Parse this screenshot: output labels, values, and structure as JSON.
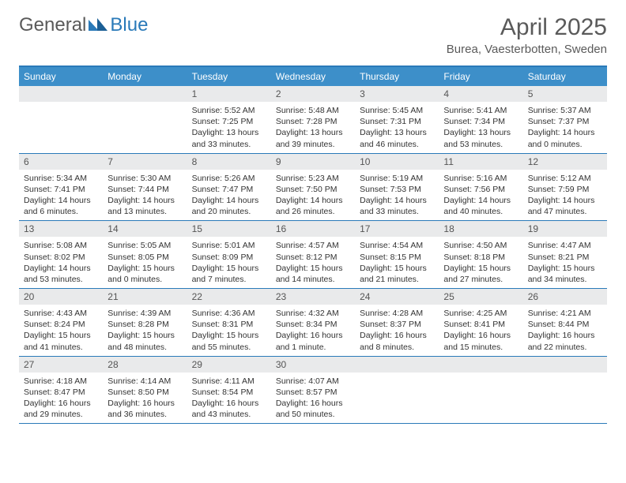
{
  "logo": {
    "text_general": "General",
    "text_blue": "Blue"
  },
  "title": "April 2025",
  "location": "Burea, Vaesterbotten, Sweden",
  "colors": {
    "header_bg": "#3d8fc9",
    "header_text": "#ffffff",
    "border": "#2a7ab9",
    "daynum_bg": "#e9eaeb",
    "text": "#333333",
    "logo_gray": "#5a5a5a",
    "logo_blue": "#2a7ab9"
  },
  "day_names": [
    "Sunday",
    "Monday",
    "Tuesday",
    "Wednesday",
    "Thursday",
    "Friday",
    "Saturday"
  ],
  "weeks": [
    [
      null,
      null,
      {
        "n": "1",
        "sr": "5:52 AM",
        "ss": "7:25 PM",
        "dl": "13 hours and 33 minutes."
      },
      {
        "n": "2",
        "sr": "5:48 AM",
        "ss": "7:28 PM",
        "dl": "13 hours and 39 minutes."
      },
      {
        "n": "3",
        "sr": "5:45 AM",
        "ss": "7:31 PM",
        "dl": "13 hours and 46 minutes."
      },
      {
        "n": "4",
        "sr": "5:41 AM",
        "ss": "7:34 PM",
        "dl": "13 hours and 53 minutes."
      },
      {
        "n": "5",
        "sr": "5:37 AM",
        "ss": "7:37 PM",
        "dl": "14 hours and 0 minutes."
      }
    ],
    [
      {
        "n": "6",
        "sr": "5:34 AM",
        "ss": "7:41 PM",
        "dl": "14 hours and 6 minutes."
      },
      {
        "n": "7",
        "sr": "5:30 AM",
        "ss": "7:44 PM",
        "dl": "14 hours and 13 minutes."
      },
      {
        "n": "8",
        "sr": "5:26 AM",
        "ss": "7:47 PM",
        "dl": "14 hours and 20 minutes."
      },
      {
        "n": "9",
        "sr": "5:23 AM",
        "ss": "7:50 PM",
        "dl": "14 hours and 26 minutes."
      },
      {
        "n": "10",
        "sr": "5:19 AM",
        "ss": "7:53 PM",
        "dl": "14 hours and 33 minutes."
      },
      {
        "n": "11",
        "sr": "5:16 AM",
        "ss": "7:56 PM",
        "dl": "14 hours and 40 minutes."
      },
      {
        "n": "12",
        "sr": "5:12 AM",
        "ss": "7:59 PM",
        "dl": "14 hours and 47 minutes."
      }
    ],
    [
      {
        "n": "13",
        "sr": "5:08 AM",
        "ss": "8:02 PM",
        "dl": "14 hours and 53 minutes."
      },
      {
        "n": "14",
        "sr": "5:05 AM",
        "ss": "8:05 PM",
        "dl": "15 hours and 0 minutes."
      },
      {
        "n": "15",
        "sr": "5:01 AM",
        "ss": "8:09 PM",
        "dl": "15 hours and 7 minutes."
      },
      {
        "n": "16",
        "sr": "4:57 AM",
        "ss": "8:12 PM",
        "dl": "15 hours and 14 minutes."
      },
      {
        "n": "17",
        "sr": "4:54 AM",
        "ss": "8:15 PM",
        "dl": "15 hours and 21 minutes."
      },
      {
        "n": "18",
        "sr": "4:50 AM",
        "ss": "8:18 PM",
        "dl": "15 hours and 27 minutes."
      },
      {
        "n": "19",
        "sr": "4:47 AM",
        "ss": "8:21 PM",
        "dl": "15 hours and 34 minutes."
      }
    ],
    [
      {
        "n": "20",
        "sr": "4:43 AM",
        "ss": "8:24 PM",
        "dl": "15 hours and 41 minutes."
      },
      {
        "n": "21",
        "sr": "4:39 AM",
        "ss": "8:28 PM",
        "dl": "15 hours and 48 minutes."
      },
      {
        "n": "22",
        "sr": "4:36 AM",
        "ss": "8:31 PM",
        "dl": "15 hours and 55 minutes."
      },
      {
        "n": "23",
        "sr": "4:32 AM",
        "ss": "8:34 PM",
        "dl": "16 hours and 1 minute."
      },
      {
        "n": "24",
        "sr": "4:28 AM",
        "ss": "8:37 PM",
        "dl": "16 hours and 8 minutes."
      },
      {
        "n": "25",
        "sr": "4:25 AM",
        "ss": "8:41 PM",
        "dl": "16 hours and 15 minutes."
      },
      {
        "n": "26",
        "sr": "4:21 AM",
        "ss": "8:44 PM",
        "dl": "16 hours and 22 minutes."
      }
    ],
    [
      {
        "n": "27",
        "sr": "4:18 AM",
        "ss": "8:47 PM",
        "dl": "16 hours and 29 minutes."
      },
      {
        "n": "28",
        "sr": "4:14 AM",
        "ss": "8:50 PM",
        "dl": "16 hours and 36 minutes."
      },
      {
        "n": "29",
        "sr": "4:11 AM",
        "ss": "8:54 PM",
        "dl": "16 hours and 43 minutes."
      },
      {
        "n": "30",
        "sr": "4:07 AM",
        "ss": "8:57 PM",
        "dl": "16 hours and 50 minutes."
      },
      null,
      null,
      null
    ]
  ],
  "labels": {
    "sunrise": "Sunrise: ",
    "sunset": "Sunset: ",
    "daylight": "Daylight: "
  }
}
